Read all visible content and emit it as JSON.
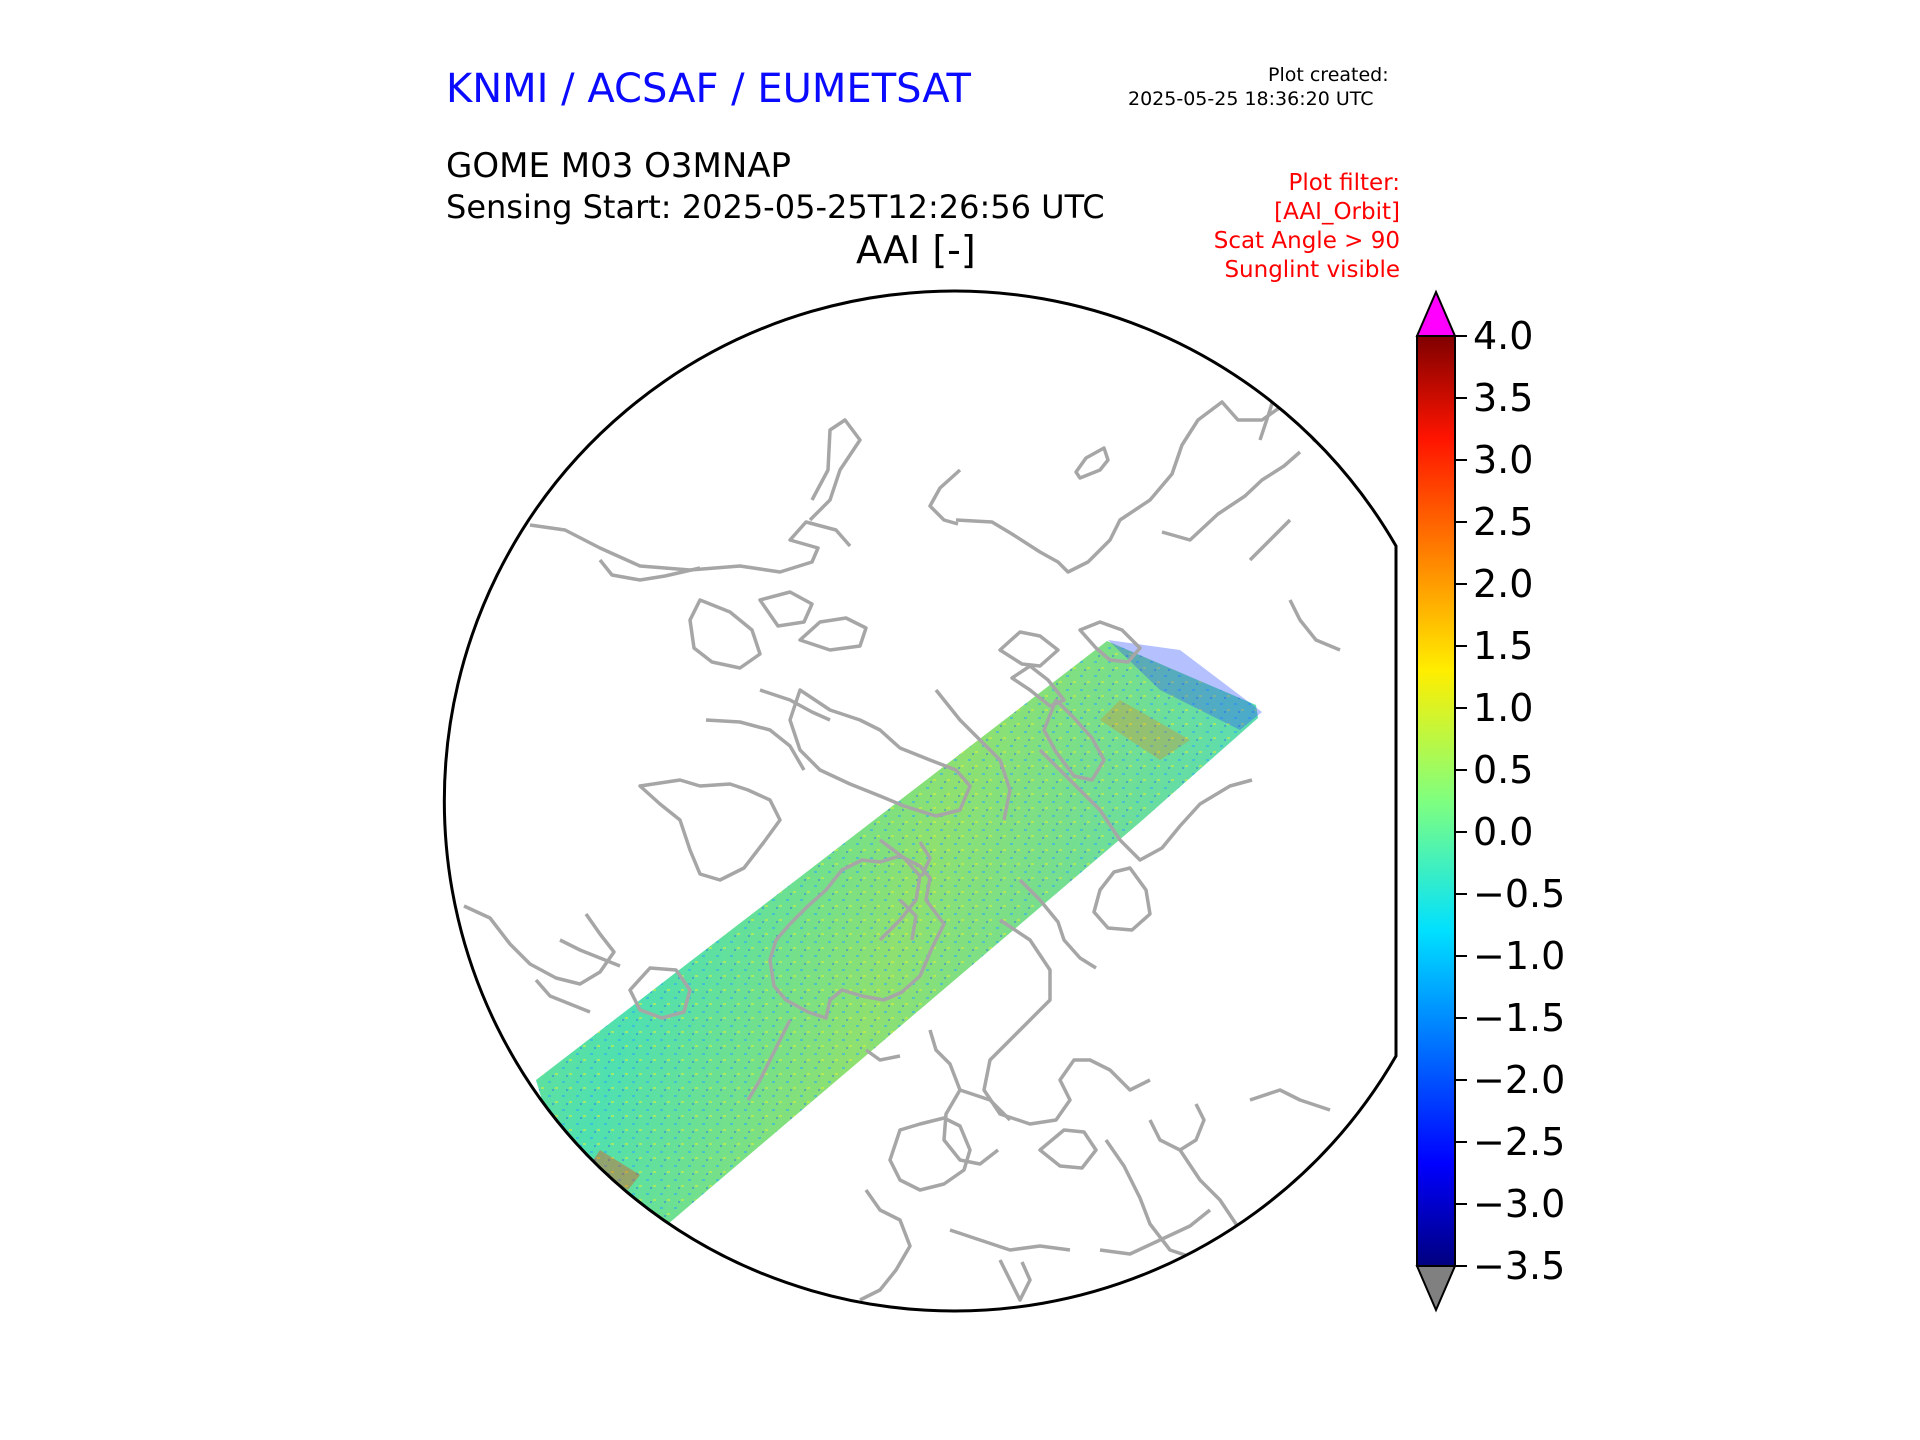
{
  "header": {
    "organization": "KNMI / ACSAF / EUMETSAT",
    "plot_created_label": "Plot created:",
    "plot_created_time": "2025-05-25 18:36:20 UTC",
    "product": "GOME M03 O3MNAP",
    "sensing_start": "Sensing Start: 2025-05-25T12:26:56 UTC",
    "variable_title": "AAI [-]"
  },
  "filters": [
    "Plot filter:",
    "[AAI_Orbit]",
    "Scat Angle > 90",
    "Sunglint visible"
  ],
  "colors": {
    "organization": "#0a0aff",
    "filter_text": "#ff0000",
    "coastline": "#a6a6a6",
    "over_max": "#ff00ff",
    "under_min": "#808080"
  },
  "map": {
    "projection": "north-polar-stereographic",
    "swath_note": "satellite swath from North Atlantic across Greenland to Svalbard"
  },
  "colorbar": {
    "colormap": "jet",
    "min": -3.5,
    "max": 4.0,
    "extend": "both",
    "ticks": [
      "4.0",
      "3.5",
      "3.0",
      "2.5",
      "2.0",
      "1.5",
      "1.0",
      "0.5",
      "0.0",
      "−0.5",
      "−1.0",
      "−1.5",
      "−2.0",
      "−2.5",
      "−3.0",
      "−3.5"
    ]
  }
}
